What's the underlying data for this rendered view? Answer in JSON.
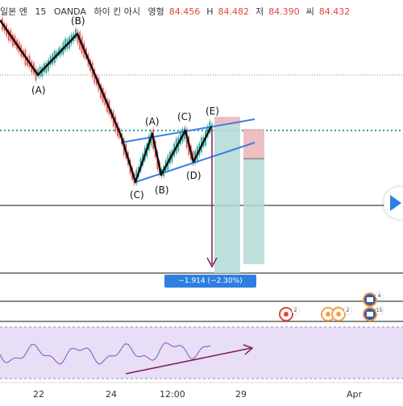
{
  "header": {
    "symbol": "일본 엔",
    "interval": "15",
    "broker": "OANDA",
    "type": "하이 킨 아시",
    "open_label": "영형",
    "open": "84.456",
    "high_label": "H",
    "high": "84.482",
    "low_label": "저",
    "low": "84.390",
    "close_label": "씨",
    "close": "84.432"
  },
  "wave_labels": {
    "b1": "(B)",
    "a1": "(A)",
    "a2": "(A)",
    "c2": "(C)",
    "e": "(E)",
    "c1": "(C)",
    "b2": "(B)",
    "d": "(D)"
  },
  "measure_tooltip": "−1.914 (−2.30%) −191.4",
  "x_axis": [
    "22",
    "24",
    "12:00",
    "29",
    "Apr"
  ],
  "events": [
    {
      "name": "event-marker-1",
      "count": "2"
    },
    {
      "name": "event-marker-2",
      "count": "4"
    },
    {
      "name": "event-marker-3",
      "count": "2"
    },
    {
      "name": "event-marker-4",
      "count": "4"
    },
    {
      "name": "event-marker-5",
      "count": "15"
    }
  ],
  "colors": {
    "up_candle": "#26a69a",
    "down_candle": "#ef5350",
    "wave_line": "#111111",
    "triangle_line": "#3d7ee8",
    "dotted_teal": "#26a69a",
    "rsi_line": "#7e57c2",
    "rsi_bg": "#e8def5",
    "measure_arrow": "#7b1e5a",
    "tooltip_bg": "#2f7fe0"
  },
  "icons": {
    "play_button": "play-icon",
    "event": "flag-icon"
  }
}
